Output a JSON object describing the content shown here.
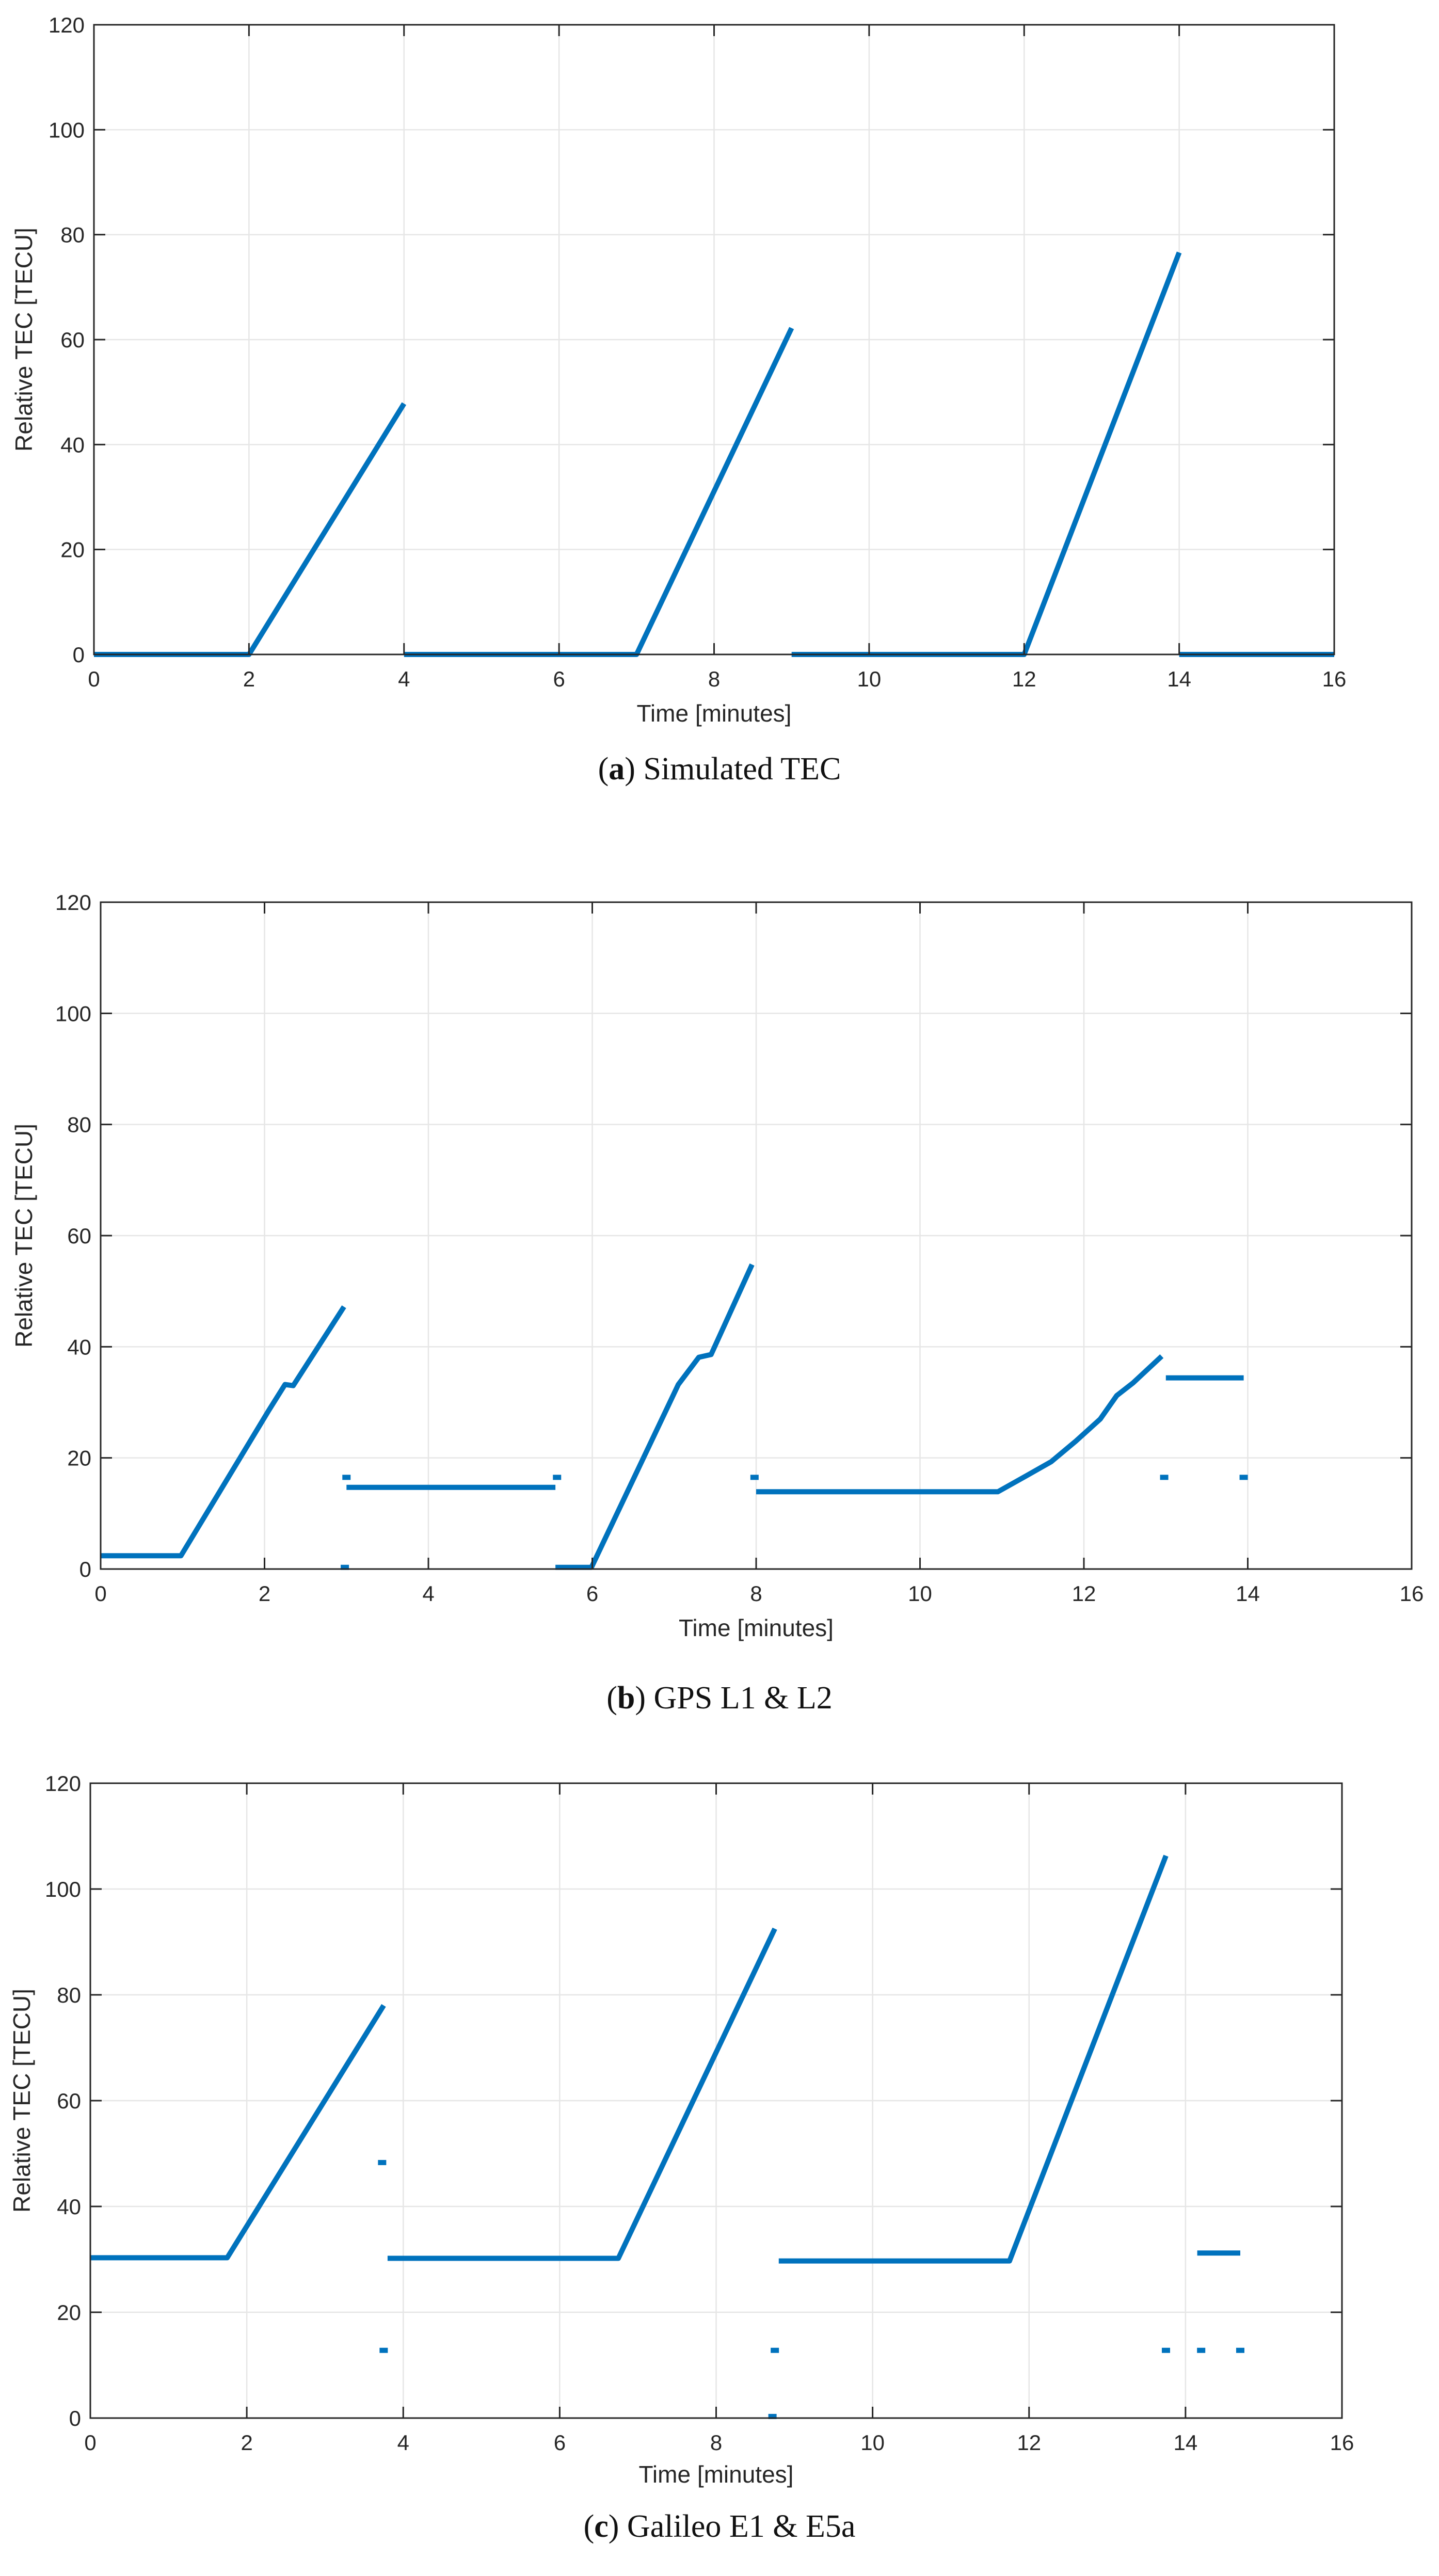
{
  "figure": {
    "colors": {
      "series": "#0072bd",
      "axis": "#262626",
      "grid": "#e6e6e6",
      "background": "#ffffff"
    }
  },
  "panels": [
    {
      "caption": {
        "letter": "a",
        "open": "(",
        "close": ")",
        "text": "Simulated TEC"
      },
      "chart_data": {
        "type": "line",
        "title": "",
        "xlabel": "Time [minutes]",
        "ylabel": "Relative TEC [TECU]",
        "xlim": [
          0,
          16
        ],
        "ylim": [
          0,
          120
        ],
        "xticks": [
          0,
          2,
          4,
          6,
          8,
          10,
          12,
          14,
          16
        ],
        "yticks": [
          0,
          20,
          40,
          60,
          80,
          100,
          120
        ],
        "xtick_labels": [
          "0",
          "2",
          "4",
          "6",
          "8",
          "10",
          "12",
          "14",
          "16"
        ],
        "ytick_labels": [
          "0",
          "20",
          "40",
          "60",
          "80",
          "100",
          "120"
        ],
        "grid": true,
        "series": [
          {
            "name": "Relative TEC",
            "segments": [
              [
                [
                  0,
                  0
                ],
                [
                  2,
                  0
                ],
                [
                  4,
                  47.8
                ]
              ],
              [
                [
                  4,
                  0
                ],
                [
                  7,
                  0
                ],
                [
                  9,
                  62.2
                ]
              ],
              [
                [
                  9,
                  0
                ],
                [
                  12,
                  0
                ],
                [
                  14,
                  76.6
                ]
              ],
              [
                [
                  14,
                  0
                ],
                [
                  16,
                  0
                ]
              ]
            ],
            "points": []
          }
        ]
      }
    },
    {
      "caption": {
        "letter": "b",
        "open": "(",
        "close": ")",
        "text": "GPS L1 & L2"
      },
      "chart_data": {
        "type": "line",
        "title": "",
        "xlabel": "Time [minutes]",
        "ylabel": "Relative TEC [TECU]",
        "xlim": [
          0,
          16
        ],
        "ylim": [
          0,
          120
        ],
        "xticks": [
          0,
          2,
          4,
          6,
          8,
          10,
          12,
          14,
          16
        ],
        "yticks": [
          0,
          20,
          40,
          60,
          80,
          100,
          120
        ],
        "xtick_labels": [
          "0",
          "2",
          "4",
          "6",
          "8",
          "10",
          "12",
          "14",
          "16"
        ],
        "ytick_labels": [
          "0",
          "20",
          "40",
          "60",
          "80",
          "100",
          "120"
        ],
        "grid": true,
        "series": [
          {
            "name": "Relative TEC",
            "segments": [
              [
                [
                  0,
                  2.4
                ],
                [
                  0.98,
                  2.4
                ],
                [
                  2.05,
                  28.5
                ],
                [
                  2.25,
                  33.2
                ],
                [
                  2.35,
                  33.0
                ],
                [
                  2.97,
                  47.2
                ]
              ],
              [
                [
                  3.0,
                  14.7
                ],
                [
                  5.55,
                  14.7
                ]
              ],
              [
                [
                  5.55,
                  0.3
                ],
                [
                  5.99,
                  0.3
                ],
                [
                  7.05,
                  33.2
                ],
                [
                  7.3,
                  38.1
                ],
                [
                  7.45,
                  38.6
                ],
                [
                  7.95,
                  54.8
                ]
              ],
              [
                [
                  8.0,
                  13.9
                ],
                [
                  10.95,
                  13.9
                ],
                [
                  11.3,
                  16.8
                ],
                [
                  11.6,
                  19.3
                ],
                [
                  11.9,
                  23.0
                ],
                [
                  12.2,
                  27.0
                ],
                [
                  12.4,
                  31.2
                ],
                [
                  12.6,
                  33.5
                ],
                [
                  12.95,
                  38.3
                ]
              ],
              [
                [
                  13.0,
                  34.4
                ],
                [
                  13.95,
                  34.4
                ]
              ]
            ],
            "points": [
              [
                3.0,
                16.5
              ],
              [
                2.98,
                0.3
              ],
              [
                5.57,
                16.5
              ],
              [
                7.98,
                16.5
              ],
              [
                12.98,
                16.5
              ],
              [
                13.95,
                16.5
              ]
            ]
          }
        ]
      }
    },
    {
      "caption": {
        "letter": "c",
        "open": "(",
        "close": ")",
        "text": "Galileo E1 & E5a"
      },
      "chart_data": {
        "type": "line",
        "title": "",
        "xlabel": "Time [minutes]",
        "ylabel": "Relative TEC [TECU]",
        "xlim": [
          0,
          16
        ],
        "ylim": [
          0,
          120
        ],
        "xticks": [
          0,
          2,
          4,
          6,
          8,
          10,
          12,
          14,
          16
        ],
        "yticks": [
          0,
          20,
          40,
          60,
          80,
          100,
          120
        ],
        "xtick_labels": [
          "0",
          "2",
          "4",
          "6",
          "8",
          "10",
          "12",
          "14",
          "16"
        ],
        "ytick_labels": [
          "0",
          "20",
          "40",
          "60",
          "80",
          "100",
          "120"
        ],
        "grid": true,
        "series": [
          {
            "name": "Relative TEC",
            "segments": [
              [
                [
                  0,
                  30.3
                ],
                [
                  1.75,
                  30.3
                ],
                [
                  3.75,
                  78.0
                ]
              ],
              [
                [
                  3.8,
                  30.2
                ],
                [
                  6.75,
                  30.2
                ],
                [
                  8.75,
                  92.5
                ]
              ],
              [
                [
                  8.8,
                  29.7
                ],
                [
                  11.75,
                  29.7
                ],
                [
                  13.75,
                  106.3
                ]
              ],
              [
                [
                  14.15,
                  31.2
                ],
                [
                  14.7,
                  31.2
                ]
              ]
            ],
            "points": [
              [
                3.73,
                48.3
              ],
              [
                3.75,
                12.8
              ],
              [
                8.75,
                12.8
              ],
              [
                8.72,
                0.3
              ],
              [
                13.75,
                12.8
              ],
              [
                14.2,
                12.8
              ],
              [
                14.7,
                12.8
              ]
            ]
          }
        ]
      }
    }
  ]
}
